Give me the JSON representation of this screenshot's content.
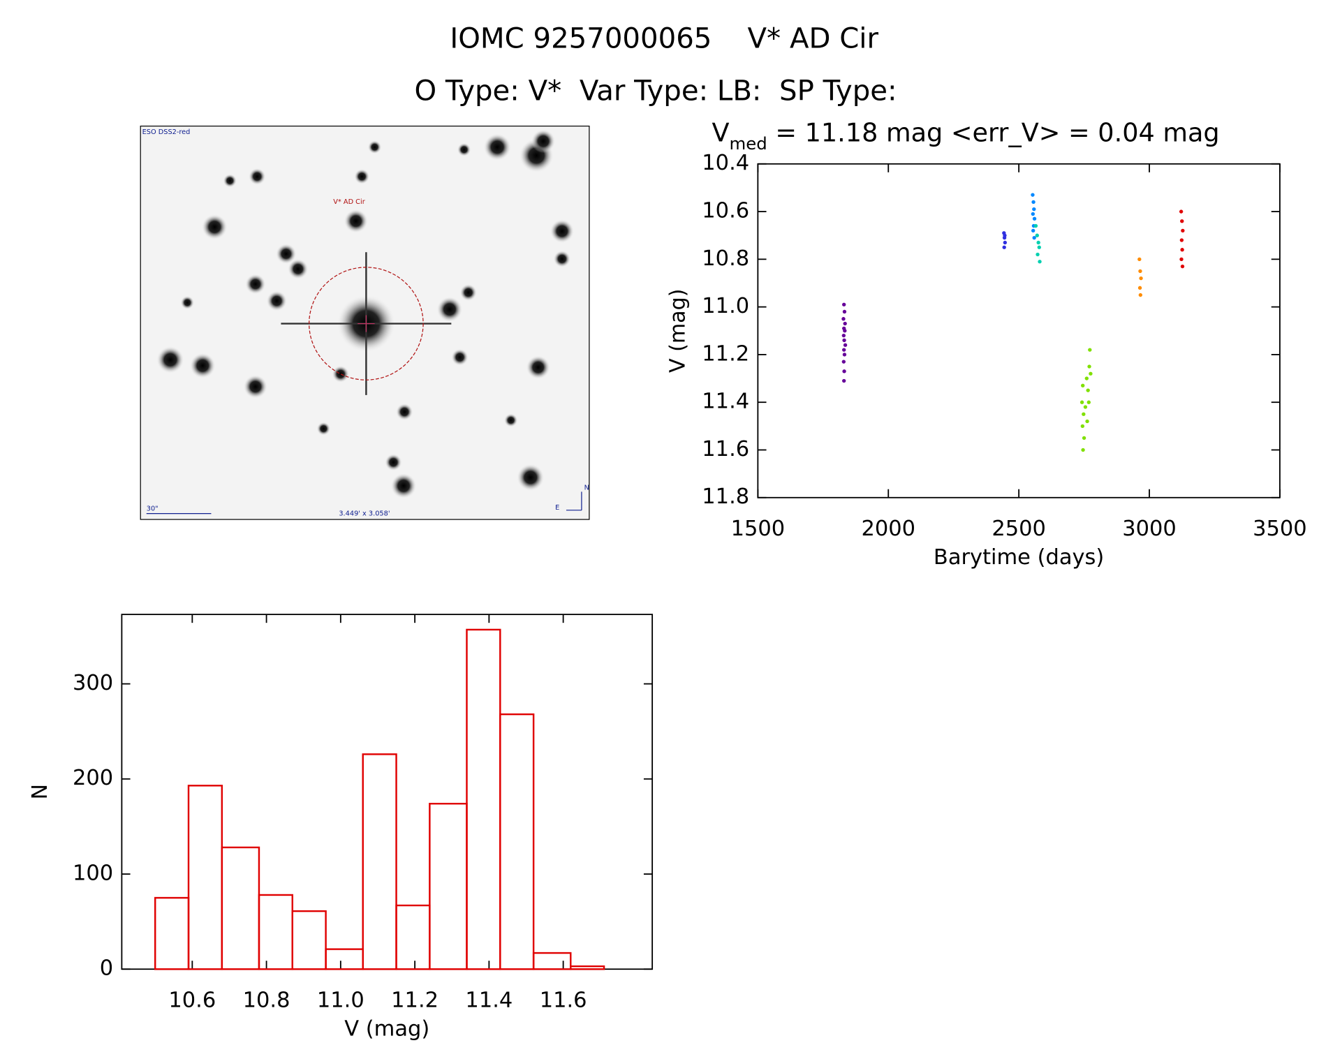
{
  "header": {
    "line1": "IOMC 9257000065    V* AD Cir",
    "line2": "O Type: V*  Var Type: LB:  SP Type:"
  },
  "finder_image": {
    "survey": "ESO DSS2-red",
    "target": "V* AD Cir",
    "scale_bar": "30\"",
    "field": "3.449' x 3.058'",
    "north": "N",
    "east": "E"
  },
  "chart_data": [
    {
      "type": "scatter",
      "title_parts": [
        "V",
        "med",
        " = 11.18 mag <err_V> = 0.04 mag"
      ],
      "x_label": "Barytime (days)",
      "y_label": "V (mag)",
      "xlim": [
        1500,
        3500
      ],
      "xticks": [
        1500,
        2000,
        2500,
        3000,
        3500
      ],
      "ylim": [
        11.8,
        10.4
      ],
      "yticks": [
        10.4,
        10.6,
        10.8,
        {
          "value": 11,
          "label": "11.0"
        },
        11.2,
        11.4,
        11.6,
        11.8
      ],
      "series": [
        {
          "color": "#660099",
          "x": [
            1830,
            1832,
            1828,
            1834,
            1830,
            1833,
            1829,
            1831,
            1835,
            1830,
            1832,
            1829,
            1831,
            1830
          ],
          "values": [
            10.99,
            11.02,
            11.05,
            11.07,
            11.09,
            11.1,
            11.12,
            11.14,
            11.16,
            11.18,
            11.2,
            11.23,
            11.27,
            11.31
          ]
        },
        {
          "color": "#3030e0",
          "x": [
            2443,
            2445,
            2447,
            2444,
            2446
          ],
          "values": [
            10.69,
            10.71,
            10.73,
            10.75,
            10.7
          ]
        },
        {
          "color": "#0088ff",
          "x": [
            2553,
            2556,
            2558,
            2554,
            2560,
            2557,
            2555,
            2559
          ],
          "values": [
            10.53,
            10.56,
            10.59,
            10.61,
            10.63,
            10.66,
            10.68,
            10.71
          ]
        },
        {
          "color": "#00d0b0",
          "x": [
            2565,
            2570,
            2575,
            2578,
            2572,
            2580
          ],
          "values": [
            10.66,
            10.7,
            10.73,
            10.75,
            10.78,
            10.81
          ]
        },
        {
          "color": "#80e000",
          "x": [
            2745,
            2742,
            2748,
            2744,
            2750,
            2746,
            2760,
            2765,
            2770,
            2768,
            2772,
            2775,
            2755,
            2762
          ],
          "values": [
            11.33,
            11.4,
            11.45,
            11.5,
            11.55,
            11.6,
            11.3,
            11.35,
            11.25,
            11.4,
            11.18,
            11.28,
            11.42,
            11.48
          ]
        },
        {
          "color": "#ff8c00",
          "x": [
            2962,
            2965,
            2968,
            2964,
            2966
          ],
          "values": [
            10.8,
            10.85,
            10.88,
            10.92,
            10.95
          ]
        },
        {
          "color": "#e00000",
          "x": [
            3122,
            3125,
            3128,
            3124,
            3126,
            3123,
            3127
          ],
          "values": [
            10.6,
            10.64,
            10.68,
            10.72,
            10.76,
            10.8,
            10.83
          ]
        }
      ]
    },
    {
      "type": "histogram",
      "color": "#e00000",
      "x_label": "V (mag)",
      "y_label": "N",
      "bins": [
        10.5,
        10.59,
        10.68,
        10.78,
        10.87,
        10.96,
        11.06,
        11.15,
        11.24,
        11.34,
        11.43,
        11.52,
        11.62,
        11.71
      ],
      "values": [
        75,
        193,
        128,
        78,
        61,
        21,
        226,
        67,
        174,
        357,
        268,
        17,
        3
      ],
      "xlim": [
        10.41,
        11.84
      ],
      "xticks": [
        10.6,
        10.8,
        {
          "value": 11,
          "label": "11.0"
        },
        11.2,
        11.4,
        11.6
      ],
      "ylim": [
        0,
        373
      ],
      "yticks": [
        0,
        100,
        200,
        300
      ]
    }
  ]
}
